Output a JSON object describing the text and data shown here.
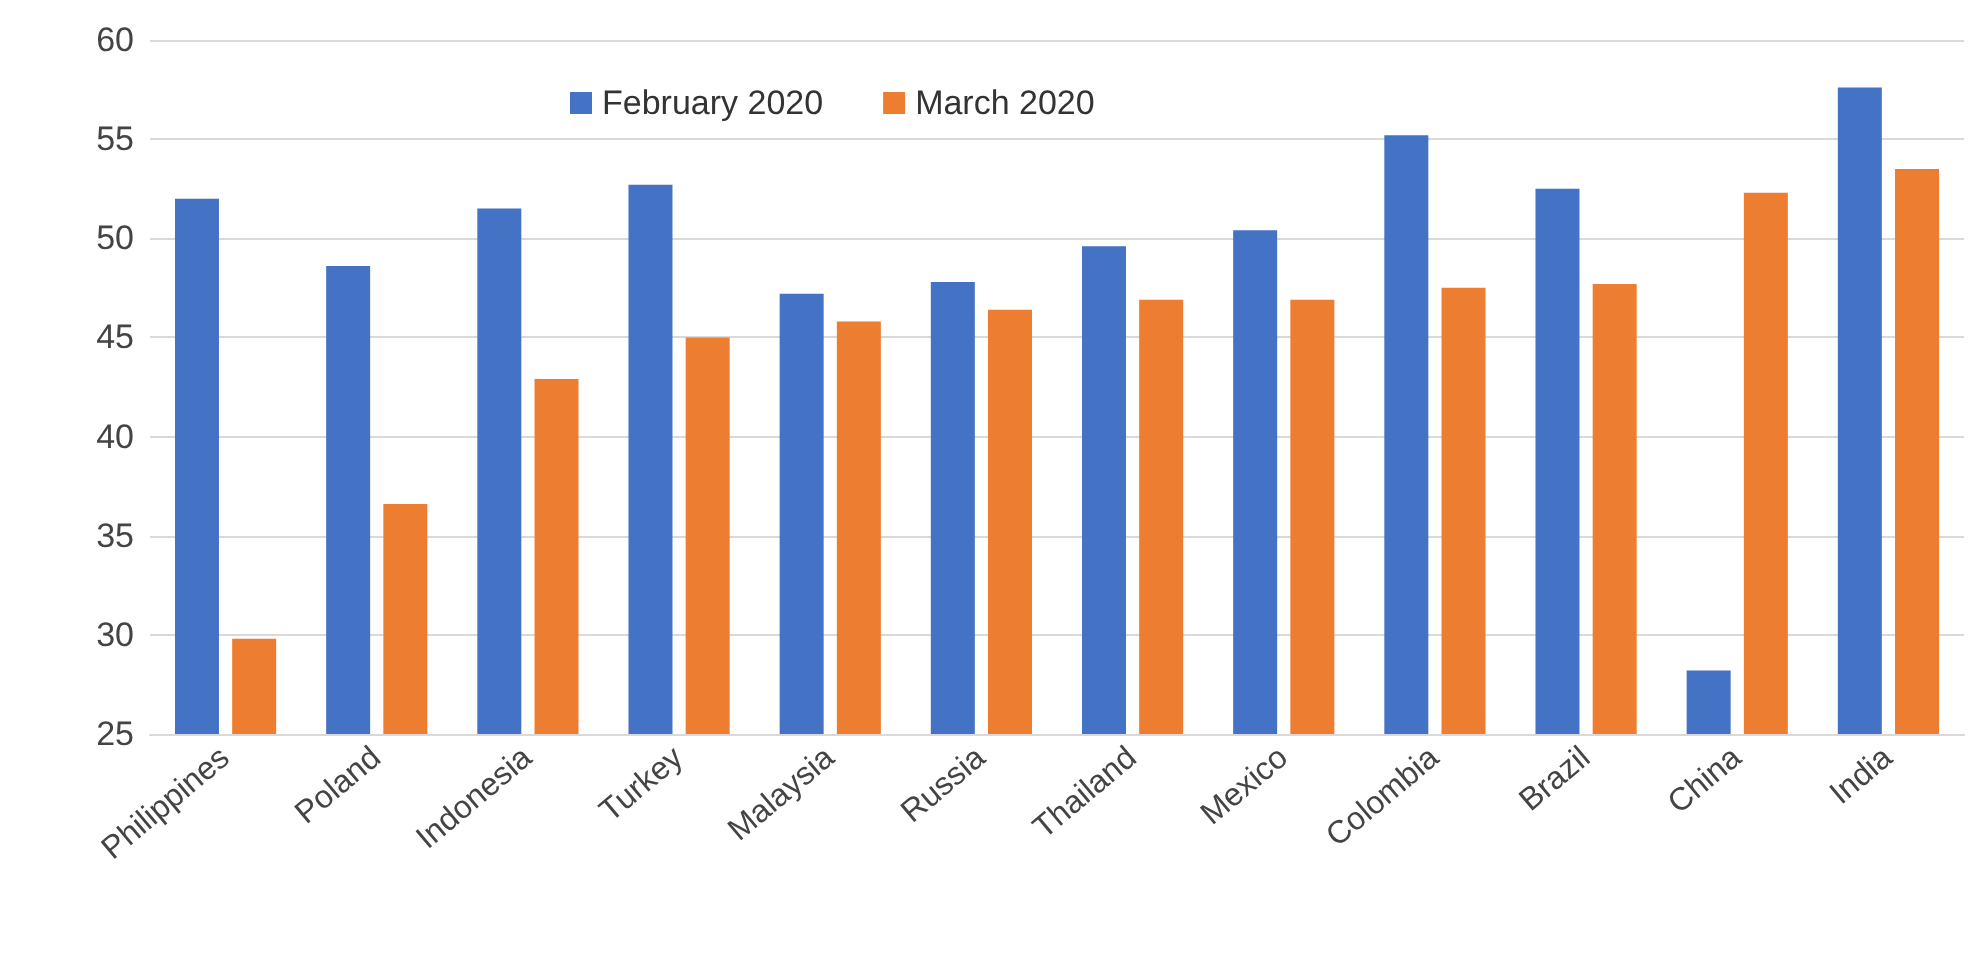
{
  "chart_data": {
    "type": "bar",
    "categories": [
      "Philippines",
      "Poland",
      "Indonesia",
      "Turkey",
      "Malaysia",
      "Russia",
      "Thailand",
      "Mexico",
      "Colombia",
      "Brazil",
      "China",
      "India"
    ],
    "series": [
      {
        "name": "February 2020",
        "color": "#4472c4",
        "values": [
          52.0,
          48.6,
          51.5,
          52.7,
          47.2,
          47.8,
          49.6,
          50.4,
          55.2,
          52.5,
          28.2,
          57.6
        ]
      },
      {
        "name": "March 2020",
        "color": "#ed7d31",
        "values": [
          29.8,
          36.6,
          42.9,
          45.0,
          45.8,
          46.4,
          46.9,
          46.9,
          47.5,
          47.7,
          52.3,
          53.5
        ]
      }
    ],
    "ylim": [
      25,
      60
    ],
    "yticks": [
      25,
      30,
      35,
      40,
      45,
      50,
      55,
      60
    ],
    "grid": "y",
    "legend": "top"
  }
}
